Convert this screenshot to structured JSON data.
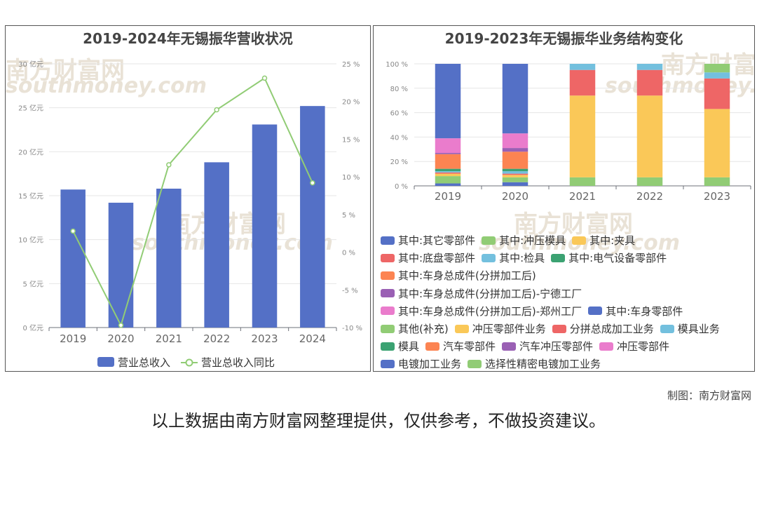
{
  "left_chart": {
    "title": "2019-2024年无锡振华营收状况",
    "chart_data": {
      "type": "bar",
      "categories": [
        "2019",
        "2020",
        "2021",
        "2022",
        "2023",
        "2024"
      ],
      "series": [
        {
          "name": "营业总收入",
          "kind": "bar",
          "axis": "left",
          "color": "#5470c6",
          "values": [
            15.7,
            14.2,
            15.8,
            18.8,
            23.1,
            25.2
          ]
        },
        {
          "name": "营业总收入同比",
          "kind": "line",
          "axis": "right",
          "color": "#91cc75",
          "values": [
            2.8,
            -9.7,
            11.6,
            18.9,
            23.1,
            9.2
          ]
        }
      ],
      "y_left": {
        "min": 0,
        "max": 30,
        "ticks": [
          0,
          5,
          10,
          15,
          20,
          25,
          30
        ],
        "tick_labels": [
          "0 亿元",
          "5 亿元",
          "10 亿元",
          "15 亿元",
          "20 亿元",
          "25 亿元",
          "30 亿元"
        ]
      },
      "y_right": {
        "min": -10,
        "max": 25,
        "ticks": [
          -10,
          -5,
          0,
          5,
          10,
          15,
          20,
          25
        ],
        "tick_labels": [
          "-10 %",
          "-5 %",
          "0 %",
          "5 %",
          "10 %",
          "15 %",
          "20 %",
          "25 %"
        ]
      },
      "grid": true,
      "legend_position": "bottom"
    }
  },
  "right_chart": {
    "title": "2019-2023年无锡振华业务结构变化",
    "chart_data": {
      "type": "bar",
      "stacked": true,
      "categories": [
        "2019",
        "2020",
        "2021",
        "2022",
        "2023"
      ],
      "y": {
        "min": 0,
        "max": 100,
        "ticks": [
          0,
          20,
          40,
          60,
          80,
          100
        ],
        "tick_labels": [
          "0 %",
          "20 %",
          "40 %",
          "60 %",
          "80 %",
          "100 %"
        ]
      },
      "series": [
        {
          "name": "其中:其它零部件",
          "color": "#5470c6",
          "values": [
            2,
            3,
            0,
            0,
            0
          ]
        },
        {
          "name": "其中:冲压模具",
          "color": "#91cc75",
          "values": [
            6,
            4,
            0,
            0,
            0
          ]
        },
        {
          "name": "其中:夹具",
          "color": "#fac858",
          "values": [
            2,
            2,
            0,
            0,
            0
          ]
        },
        {
          "name": "其中:底盘零部件",
          "color": "#ee6666",
          "values": [
            1,
            1,
            0,
            0,
            0
          ]
        },
        {
          "name": "其中:检具",
          "color": "#73c0de",
          "values": [
            1,
            2,
            0,
            0,
            0
          ]
        },
        {
          "name": "其中:电气设备零部件",
          "color": "#3ba272",
          "values": [
            2,
            2,
            0,
            0,
            0
          ]
        },
        {
          "name": "其中:车身总成件(分拼加工后)",
          "color": "#fc8452",
          "values": [
            12,
            14,
            0,
            0,
            0
          ]
        },
        {
          "name": "其中:车身总成件(分拼加工后)-宁德工厂",
          "color": "#9a60b4",
          "values": [
            1,
            3,
            0,
            0,
            0
          ]
        },
        {
          "name": "其中:车身总成件(分拼加工后)-郑州工厂",
          "color": "#ea7ccc",
          "values": [
            12,
            12,
            0,
            0,
            0
          ]
        },
        {
          "name": "其中:车身零部件",
          "color": "#5470c6",
          "values": [
            61,
            57,
            0,
            0,
            0
          ]
        },
        {
          "name": "其他(补充)",
          "color": "#91cc75",
          "values": [
            0,
            0,
            7,
            7,
            7
          ]
        },
        {
          "name": "冲压零部件业务",
          "color": "#fac858",
          "values": [
            0,
            0,
            67,
            67,
            56
          ]
        },
        {
          "name": "分拼总成加工业务",
          "color": "#ee6666",
          "values": [
            0,
            0,
            21,
            21,
            25
          ]
        },
        {
          "name": "模具业务",
          "color": "#73c0de",
          "values": [
            0,
            0,
            5,
            5,
            5
          ]
        },
        {
          "name": "模具",
          "color": "#3ba272",
          "values": [
            0,
            0,
            0,
            0,
            0
          ]
        },
        {
          "name": "汽车零部件",
          "color": "#fc8452",
          "values": [
            0,
            0,
            0,
            0,
            0
          ]
        },
        {
          "name": "汽车冲压零部件",
          "color": "#9a60b4",
          "values": [
            0,
            0,
            0,
            0,
            0
          ]
        },
        {
          "name": "冲压零部件",
          "color": "#ea7ccc",
          "values": [
            0,
            0,
            0,
            0,
            0
          ]
        },
        {
          "name": "电镀加工业务",
          "color": "#5470c6",
          "values": [
            0,
            0,
            0,
            0,
            0
          ]
        },
        {
          "name": "选择性精密电镀加工业务",
          "color": "#91cc75",
          "values": [
            0,
            0,
            0,
            0,
            7
          ]
        }
      ],
      "grid": true,
      "legend_position": "bottom"
    }
  },
  "watermark": {
    "cn": "南方财富网",
    "en": "southmoney.com"
  },
  "credit": "制图：南方财富网",
  "disclaimer": "以上数据由南方财富网整理提供，仅供参考，不做投资建议。"
}
